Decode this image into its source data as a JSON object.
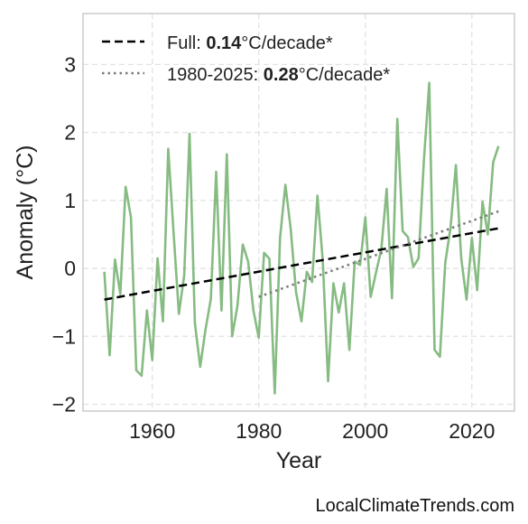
{
  "chart_data": {
    "type": "line",
    "xlabel": "Year",
    "ylabel": "Anomaly (°C)",
    "xlim": [
      1947,
      2028
    ],
    "ylim": [
      -2.1,
      3.75
    ],
    "xticks": [
      1960,
      1980,
      2000,
      2020
    ],
    "yticks": [
      -2,
      -1,
      0,
      1,
      2,
      3
    ],
    "ytick_labels": [
      "−2",
      "−1",
      "0",
      "1",
      "2",
      "3"
    ],
    "grid": true,
    "legend_position": "top-left",
    "series": [
      {
        "style": "solid",
        "color": "#86bb82",
        "x": [
          1951,
          1952,
          1953,
          1954,
          1955,
          1956,
          1957,
          1958,
          1959,
          1960,
          1961,
          1962,
          1963,
          1964,
          1965,
          1966,
          1967,
          1968,
          1969,
          1970,
          1971,
          1972,
          1973,
          1974,
          1975,
          1976,
          1977,
          1978,
          1979,
          1980,
          1981,
          1982,
          1983,
          1984,
          1985,
          1986,
          1987,
          1988,
          1989,
          1990,
          1991,
          1992,
          1993,
          1994,
          1995,
          1996,
          1997,
          1998,
          1999,
          2000,
          2001,
          2002,
          2003,
          2004,
          2005,
          2006,
          2007,
          2008,
          2009,
          2010,
          2011,
          2012,
          2013,
          2014,
          2015,
          2016,
          2017,
          2018,
          2019,
          2020,
          2021,
          2022,
          2023,
          2024,
          2025
        ],
        "y": [
          -0.05,
          -1.28,
          0.13,
          -0.38,
          1.2,
          0.75,
          -1.5,
          -1.58,
          -0.62,
          -1.35,
          0.15,
          -0.78,
          1.76,
          0.53,
          -0.67,
          -0.1,
          1.98,
          -0.8,
          -1.45,
          -0.9,
          -0.45,
          1.42,
          -0.62,
          1.68,
          -1.0,
          -0.55,
          0.35,
          0.1,
          -0.62,
          -1.02,
          0.23,
          0.14,
          -1.84,
          0.45,
          1.23,
          0.58,
          -0.35,
          -0.78,
          -0.05,
          -0.2,
          1.07,
          0.12,
          -1.66,
          -0.22,
          -0.65,
          -0.22,
          -1.2,
          0.1,
          0.05,
          0.75,
          -0.42,
          -0.06,
          0.28,
          1.17,
          -0.44,
          2.2,
          0.55,
          0.46,
          0.02,
          0.15,
          1.6,
          2.73,
          -1.2,
          -1.3,
          0.08,
          0.6,
          1.52,
          0.15,
          -0.46,
          0.45,
          -0.32,
          0.98,
          0.5,
          1.56,
          1.8
        ]
      },
      {
        "name": "Full",
        "style": "dashed",
        "color": "#000000",
        "x": [
          1951,
          2025
        ],
        "y": [
          -0.46,
          0.59
        ]
      },
      {
        "name": "1980-2025",
        "style": "dotted",
        "color": "#7a7a7a",
        "x": [
          1980,
          2025
        ],
        "y": [
          -0.42,
          0.84
        ]
      }
    ],
    "legend": [
      {
        "prefix": "Full: ",
        "value": "0.14",
        "suffix": "°C/decade*",
        "style": "dashed",
        "color": "#000000"
      },
      {
        "prefix": "1980-2025: ",
        "value": "0.28",
        "suffix": "°C/decade*",
        "style": "dotted",
        "color": "#7a7a7a"
      }
    ]
  },
  "source_credit": "LocalClimateTrends.com"
}
